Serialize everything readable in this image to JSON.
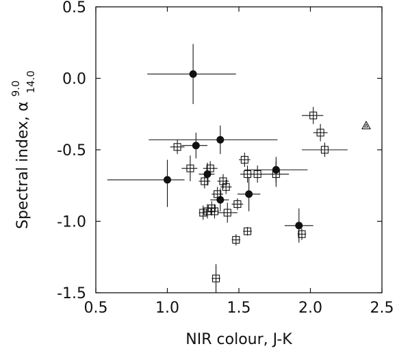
{
  "chart_data": {
    "type": "scatter",
    "xlabel": "NIR colour, J-K",
    "ylabel": {
      "text": "Spectral index, α",
      "superscript": "9.0",
      "subscript": "14.0"
    },
    "xlim": [
      0.5,
      2.5
    ],
    "ylim": [
      -1.5,
      0.5
    ],
    "xticks": [
      "0.5",
      "1.0",
      "1.5",
      "2.0",
      "2.5"
    ],
    "yticks": [
      "0.5",
      "0.0",
      "-0.5",
      "-1.0",
      "-1.5"
    ],
    "xtick_values": [
      0.5,
      1.0,
      1.5,
      2.0,
      2.5
    ],
    "ytick_values": [
      0.5,
      0.0,
      -0.5,
      -1.0,
      -1.5
    ],
    "grid": false,
    "series": [
      {
        "marker": "filled-circle",
        "points": [
          {
            "x": 1.18,
            "y": 0.03,
            "xerr": [
              0.32,
              0.3
            ],
            "yerr": [
              0.21,
              0.21
            ]
          },
          {
            "x": 1.2,
            "y": -0.47,
            "xerr": [
              0.1,
              0.08
            ],
            "yerr": [
              0.09,
              0.09
            ]
          },
          {
            "x": 1.37,
            "y": -0.43,
            "xerr": [
              0.5,
              0.4
            ],
            "yerr": [
              0.1,
              0.1
            ]
          },
          {
            "x": 1.0,
            "y": -0.71,
            "xerr": [
              0.42,
              0.12
            ],
            "yerr": [
              0.19,
              0.14
            ]
          },
          {
            "x": 1.28,
            "y": -0.67,
            "xerr": [
              0.06,
              0.05
            ],
            "yerr": [
              0.08,
              0.08
            ]
          },
          {
            "x": 1.37,
            "y": -0.85,
            "xerr": [
              0.07,
              0.06
            ],
            "yerr": [
              0.08,
              0.08
            ]
          },
          {
            "x": 1.57,
            "y": -0.81,
            "xerr": [
              0.08,
              0.08
            ],
            "yerr": [
              0.12,
              0.12
            ]
          },
          {
            "x": 1.76,
            "y": -0.64,
            "xerr": [
              0.22,
              0.22
            ],
            "yerr": [
              0.09,
              0.09
            ]
          },
          {
            "x": 1.92,
            "y": -1.03,
            "xerr": [
              0.1,
              0.1
            ],
            "yerr": [
              0.12,
              0.12
            ]
          }
        ]
      },
      {
        "marker": "open-square",
        "points": [
          {
            "x": 2.02,
            "y": -0.26,
            "xerr": [
              0.08,
              0.07
            ],
            "yerr": [
              0.06,
              0.06
            ]
          },
          {
            "x": 2.07,
            "y": -0.38,
            "xerr": [
              0.05,
              0.05
            ],
            "yerr": [
              0.06,
              0.06
            ]
          },
          {
            "x": 2.1,
            "y": -0.5,
            "xerr": [
              0.16,
              0.16
            ],
            "yerr": [
              0.05,
              0.05
            ]
          },
          {
            "x": 1.07,
            "y": -0.48,
            "xerr": [
              0.05,
              0.05
            ],
            "yerr": [
              0.05,
              0.05
            ]
          },
          {
            "x": 1.16,
            "y": -0.63,
            "xerr": [
              0.06,
              0.05
            ],
            "yerr": [
              0.09,
              0.09
            ]
          },
          {
            "x": 1.3,
            "y": -0.63,
            "xerr": [
              0.05,
              0.05
            ],
            "yerr": [
              0.05,
              0.05
            ]
          },
          {
            "x": 1.26,
            "y": -0.72,
            "xerr": [
              0.04,
              0.04
            ],
            "yerr": [
              0.05,
              0.05
            ]
          },
          {
            "x": 1.39,
            "y": -0.72,
            "xerr": [
              0.04,
              0.04
            ],
            "yerr": [
              0.05,
              0.05
            ]
          },
          {
            "x": 1.41,
            "y": -0.76,
            "xerr": [
              0.04,
              0.04
            ],
            "yerr": [
              0.05,
              0.05
            ]
          },
          {
            "x": 1.54,
            "y": -0.57,
            "xerr": [
              0.04,
              0.04
            ],
            "yerr": [
              0.05,
              0.05
            ]
          },
          {
            "x": 1.56,
            "y": -0.67,
            "xerr": [
              0.05,
              0.05
            ],
            "yerr": [
              0.06,
              0.06
            ]
          },
          {
            "x": 1.63,
            "y": -0.67,
            "xerr": [
              0.05,
              0.05
            ],
            "yerr": [
              0.06,
              0.06
            ]
          },
          {
            "x": 1.76,
            "y": -0.67,
            "xerr": [
              0.09,
              0.09
            ],
            "yerr": [
              0.09,
              0.09
            ]
          },
          {
            "x": 1.35,
            "y": -0.81,
            "xerr": [
              0.04,
              0.04
            ],
            "yerr": [
              0.05,
              0.05
            ]
          },
          {
            "x": 1.49,
            "y": -0.88,
            "xerr": [
              0.04,
              0.04
            ],
            "yerr": [
              0.04,
              0.04
            ]
          },
          {
            "x": 1.42,
            "y": -0.94,
            "xerr": [
              0.07,
              0.07
            ],
            "yerr": [
              0.07,
              0.07
            ]
          },
          {
            "x": 1.25,
            "y": -0.94,
            "xerr": [
              0.03,
              0.03
            ],
            "yerr": [
              0.05,
              0.05
            ]
          },
          {
            "x": 1.28,
            "y": -0.93,
            "xerr": [
              0.03,
              0.03
            ],
            "yerr": [
              0.05,
              0.05
            ]
          },
          {
            "x": 1.31,
            "y": -0.91,
            "xerr": [
              0.03,
              0.03
            ],
            "yerr": [
              0.05,
              0.05
            ]
          },
          {
            "x": 1.33,
            "y": -0.93,
            "xerr": [
              0.03,
              0.03
            ],
            "yerr": [
              0.05,
              0.05
            ]
          },
          {
            "x": 1.48,
            "y": -1.13,
            "xerr": [
              0.03,
              0.03
            ],
            "yerr": [
              0.04,
              0.04
            ]
          },
          {
            "x": 1.56,
            "y": -1.07,
            "xerr": [
              0.03,
              0.03
            ],
            "yerr": [
              0.03,
              0.03
            ]
          },
          {
            "x": 1.94,
            "y": -1.09,
            "xerr": [
              0.03,
              0.03
            ],
            "yerr": [
              0.04,
              0.04
            ]
          },
          {
            "x": 1.34,
            "y": -1.4,
            "xerr": [
              0.03,
              0.03
            ],
            "yerr": [
              0.1,
              0.1
            ]
          }
        ]
      },
      {
        "marker": "open-triangle",
        "points": [
          {
            "x": 2.39,
            "y": -0.33,
            "xerr": [
              0,
              0
            ],
            "yerr": [
              0,
              0
            ]
          }
        ]
      }
    ]
  }
}
